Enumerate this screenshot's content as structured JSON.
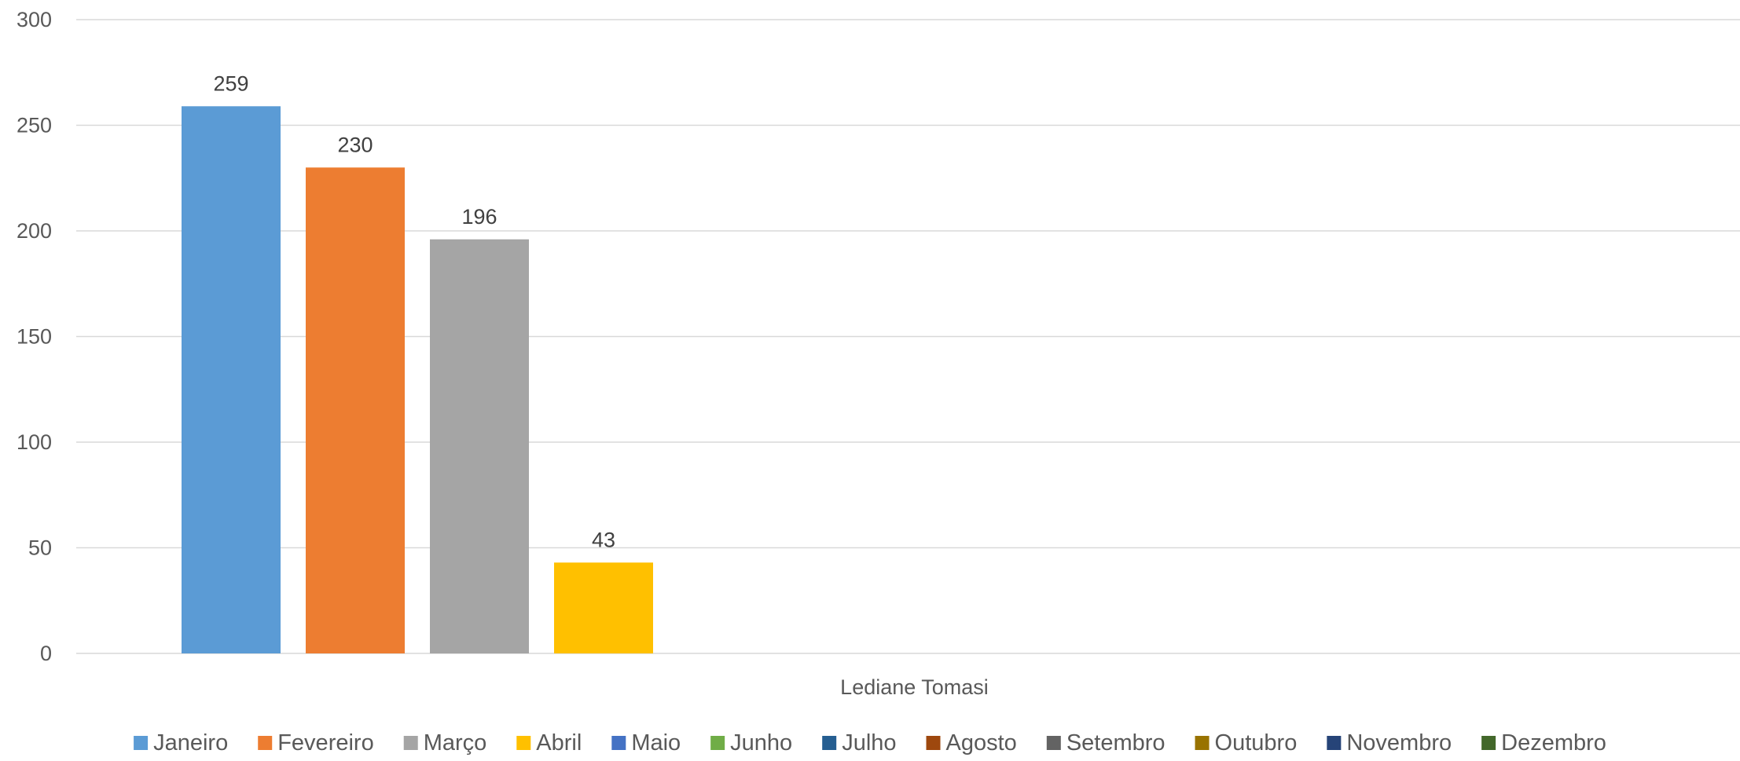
{
  "chart_data": {
    "type": "bar",
    "categories": [
      "Lediane Tomasi"
    ],
    "ylim": [
      0,
      300
    ],
    "y_ticks": [
      0,
      50,
      100,
      150,
      200,
      250,
      300
    ],
    "grid": true,
    "legend_position": "bottom",
    "data_labels": true,
    "series": [
      {
        "name": "Janeiro",
        "values": [
          259
        ],
        "color": "#5B9BD5"
      },
      {
        "name": "Fevereiro",
        "values": [
          230
        ],
        "color": "#ED7D31"
      },
      {
        "name": "Março",
        "values": [
          196
        ],
        "color": "#A5A5A5"
      },
      {
        "name": "Abril",
        "values": [
          43
        ],
        "color": "#FFC000"
      },
      {
        "name": "Maio",
        "values": [
          null
        ],
        "color": "#4472C4"
      },
      {
        "name": "Junho",
        "values": [
          null
        ],
        "color": "#70AD47"
      },
      {
        "name": "Julho",
        "values": [
          null
        ],
        "color": "#255E91"
      },
      {
        "name": "Agosto",
        "values": [
          null
        ],
        "color": "#9E480E"
      },
      {
        "name": "Setembro",
        "values": [
          null
        ],
        "color": "#636363"
      },
      {
        "name": "Outubro",
        "values": [
          null
        ],
        "color": "#997300"
      },
      {
        "name": "Novembro",
        "values": [
          null
        ],
        "color": "#264478"
      },
      {
        "name": "Dezembro",
        "values": [
          null
        ],
        "color": "#43682B"
      }
    ]
  }
}
